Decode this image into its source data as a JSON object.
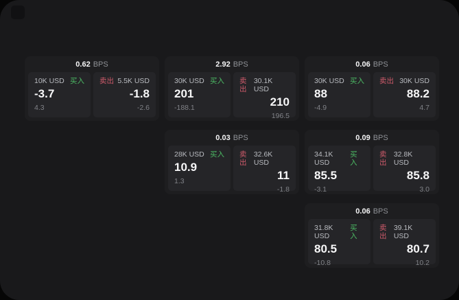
{
  "labels": {
    "bps": "BPS",
    "buy": "买入",
    "sell": "卖出"
  },
  "colors": {
    "buy_accent": "#4cba64",
    "sell_accent": "#cd5a6a",
    "background": "#060606",
    "panel_background": "#19191b",
    "card_background": "#1e1e20"
  },
  "cards": [
    {
      "bps": "0.62",
      "col": 0,
      "row": 0,
      "buy": {
        "amount": "10K USD",
        "main": "-3.7",
        "sub": "4.3"
      },
      "sell": {
        "amount": "5.5K USD",
        "main": "-1.8",
        "sub": "-2.6"
      }
    },
    {
      "bps": "2.92",
      "col": 1,
      "row": 0,
      "buy": {
        "amount": "30K USD",
        "main": "201",
        "sub": "-188.1"
      },
      "sell": {
        "amount": "30.1K USD",
        "main": "210",
        "sub": "196.5"
      }
    },
    {
      "bps": "0.06",
      "col": 2,
      "row": 0,
      "buy": {
        "amount": "30K USD",
        "main": "88",
        "sub": "-4.9"
      },
      "sell": {
        "amount": "30K USD",
        "main": "88.2",
        "sub": "4.7"
      }
    },
    {
      "bps": "0.03",
      "col": 1,
      "row": 1,
      "buy": {
        "amount": "28K USD",
        "main": "10.9",
        "sub": "1.3"
      },
      "sell": {
        "amount": "32.6K USD",
        "main": "11",
        "sub": "-1.8"
      }
    },
    {
      "bps": "0.09",
      "col": 2,
      "row": 1,
      "buy": {
        "amount": "34.1K USD",
        "main": "85.5",
        "sub": "-3.1"
      },
      "sell": {
        "amount": "32.8K USD",
        "main": "85.8",
        "sub": "3.0"
      }
    },
    {
      "bps": "0.06",
      "col": 2,
      "row": 2,
      "buy": {
        "amount": "31.8K USD",
        "main": "80.5",
        "sub": "-10.8"
      },
      "sell": {
        "amount": "39.1K USD",
        "main": "80.7",
        "sub": "10.2"
      }
    }
  ]
}
